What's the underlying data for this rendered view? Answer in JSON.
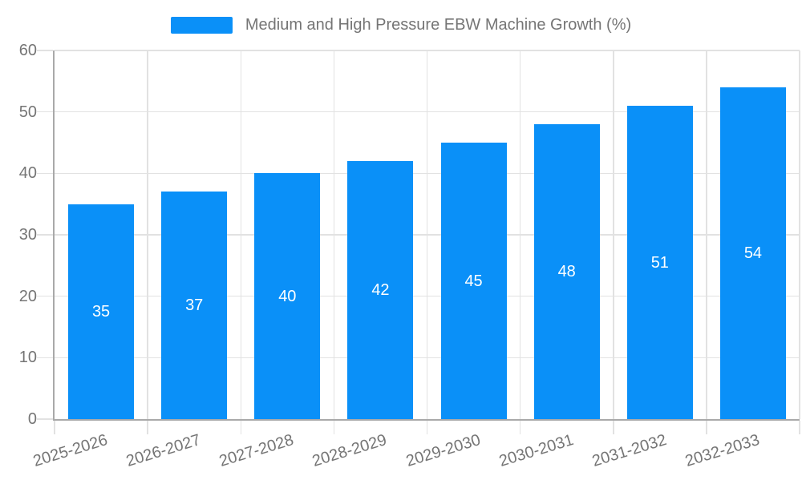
{
  "chart_data": {
    "type": "bar",
    "title": "Medium and High Pressure EBW Machine Growth (%)",
    "legend": [
      "Medium and High Pressure EBW Machine Growth (%)"
    ],
    "legend_position": "top-center",
    "categories": [
      "2025-2026",
      "2026-2027",
      "2027-2028",
      "2028-2029",
      "2029-2030",
      "2030-2031",
      "2031-2032",
      "2032-2033"
    ],
    "series": [
      {
        "name": "Medium and High Pressure EBW Machine Growth (%)",
        "values": [
          35,
          37,
          40,
          42,
          45,
          48,
          51,
          54
        ]
      }
    ],
    "bar_value_labels_visible": true,
    "xlabel": "",
    "ylabel": "",
    "ylim": [
      0,
      60
    ],
    "y_ticks": [
      0,
      10,
      20,
      30,
      40,
      50,
      60
    ],
    "grid": true,
    "colors": {
      "bar": "#0A90F8",
      "bar_label": "#FFFFFF",
      "axis": "#A9A9A9",
      "gridline": "#E2E2E2",
      "tick_text": "#757575",
      "legend_text": "#757575",
      "background": "#FFFFFF"
    }
  }
}
